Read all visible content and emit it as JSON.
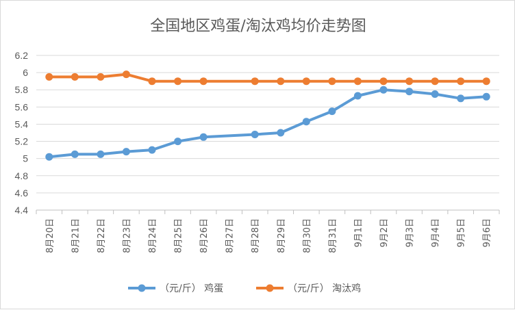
{
  "chart_data": {
    "type": "line",
    "title": "全国地区鸡蛋/淘汰鸡均价走势图",
    "categories": [
      "8月20日",
      "8月21日",
      "8月22日",
      "8月23日",
      "8月24日",
      "8月25日",
      "8月26日",
      "8月27日",
      "8月28日",
      "8月29日",
      "8月30日",
      "8月31日",
      "9月1日",
      "9月2日",
      "9月3日",
      "9月4日",
      "9月5日",
      "9月6日"
    ],
    "ylim": [
      4.4,
      6.2
    ],
    "yticks": [
      "6.2",
      "6",
      "5.8",
      "5.6",
      "5.4",
      "5.2",
      "5",
      "4.8",
      "4.6",
      "4.4"
    ],
    "grid": true,
    "legend_position": "bottom",
    "series": [
      {
        "name": "（元/斤） 鸡蛋",
        "color": "#5b9bd5",
        "values": [
          5.02,
          5.05,
          5.05,
          5.08,
          5.1,
          5.2,
          5.25,
          null,
          5.28,
          5.3,
          5.43,
          5.55,
          5.73,
          5.8,
          5.78,
          5.75,
          5.7,
          5.72
        ]
      },
      {
        "name": "（元/斤） 淘汰鸡",
        "color": "#ed7d31",
        "values": [
          5.95,
          5.95,
          5.95,
          5.98,
          5.9,
          5.9,
          5.9,
          null,
          5.9,
          5.9,
          5.9,
          5.9,
          5.9,
          5.9,
          5.9,
          5.9,
          5.9,
          5.9
        ]
      }
    ]
  }
}
